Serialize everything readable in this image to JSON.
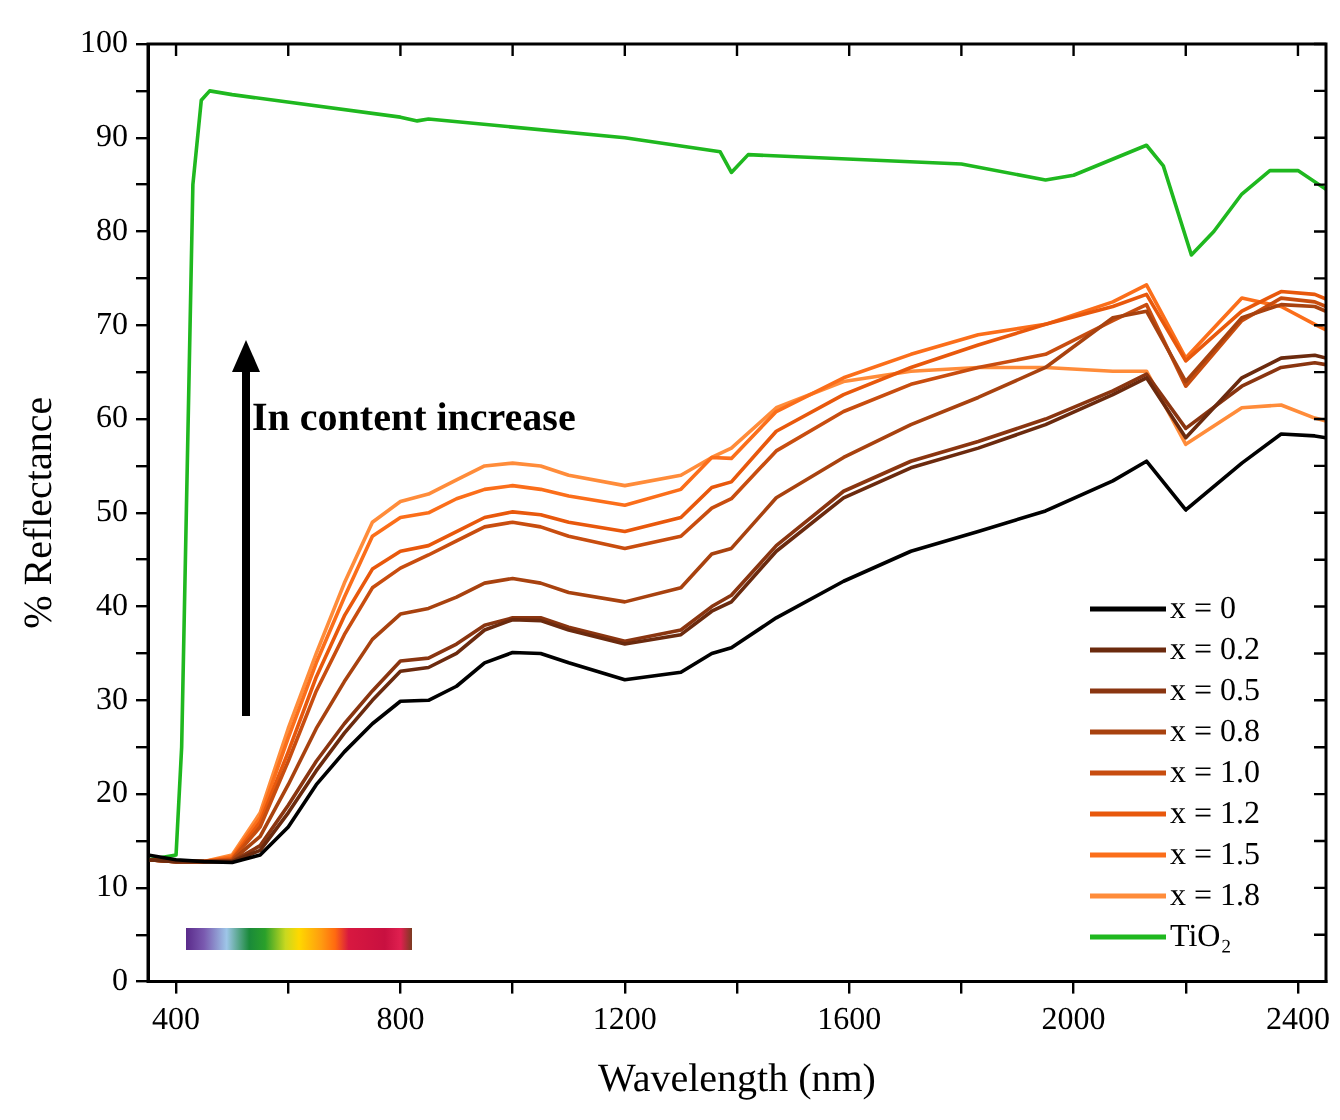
{
  "chart_data": {
    "type": "line",
    "xlabel": "Wavelength (nm)",
    "ylabel": "% Reflectance",
    "x": [
      350,
      400,
      450,
      500,
      550,
      600,
      650,
      700,
      750,
      800,
      850,
      900,
      950,
      1000,
      1050,
      1100,
      1200,
      1300,
      1355,
      1390,
      1470,
      1590,
      1710,
      1830,
      1950,
      2070,
      2130,
      2200,
      2300,
      2370,
      2430,
      2450
    ],
    "series": [
      {
        "name": "x = 0",
        "color": "#000000",
        "values": [
          13.5,
          13,
          12.8,
          12.7,
          13.5,
          16.5,
          21,
          24.5,
          27.5,
          29.9,
          30,
          31.5,
          34,
          35.1,
          35,
          34,
          32.2,
          33,
          35,
          35.6,
          38.8,
          42.7,
          45.9,
          48,
          50.2,
          53.4,
          55.5,
          50.3,
          55.3,
          58.4,
          58.2,
          58
        ]
      },
      {
        "name": "x = 0.2",
        "color": "#6b2a0e",
        "values": [
          13,
          12.8,
          12.8,
          12.8,
          14,
          18,
          22.5,
          26.5,
          30,
          33.1,
          33.5,
          35,
          37.5,
          38.6,
          38.5,
          37.5,
          36,
          37,
          39.5,
          40.5,
          45.9,
          51.6,
          54.8,
          56.9,
          59.4,
          62.6,
          64.4,
          58,
          64.4,
          66.5,
          66.8,
          66.5
        ]
      },
      {
        "name": "x = 0.5",
        "color": "#8a3510",
        "values": [
          13,
          12.8,
          12.8,
          12.8,
          14.5,
          18.8,
          23.5,
          27.5,
          31,
          34.2,
          34.5,
          36,
          38,
          38.8,
          38.8,
          37.8,
          36.3,
          37.5,
          40,
          41.2,
          46.5,
          52.3,
          55.5,
          57.6,
          60,
          63,
          64.8,
          59,
          63.5,
          65.5,
          66,
          65.8
        ]
      },
      {
        "name": "x = 0.8",
        "color": "#a8420f",
        "values": [
          13,
          12.8,
          12.8,
          12.9,
          15.5,
          21,
          27,
          32,
          36.5,
          39.2,
          39.8,
          41,
          42.5,
          43,
          42.5,
          41.5,
          40.5,
          42,
          45.6,
          46.2,
          51.6,
          55.9,
          59.4,
          62.3,
          65.5,
          70.8,
          71.5,
          64,
          70.8,
          72.2,
          72,
          71.5
        ]
      },
      {
        "name": "x = 1.0",
        "color": "#c84d0f",
        "values": [
          13,
          12.8,
          12.8,
          13,
          16.5,
          23.5,
          31,
          37,
          42,
          44.1,
          45.5,
          47,
          48.5,
          49,
          48.5,
          47.5,
          46.2,
          47.5,
          50.5,
          51.5,
          56.6,
          60.8,
          63.7,
          65.5,
          66.9,
          70.5,
          72.2,
          63.5,
          70.5,
          72.9,
          72.5,
          72
        ]
      },
      {
        "name": "x = 1.2",
        "color": "#e8580c",
        "values": [
          13,
          12.8,
          12.8,
          13.1,
          17,
          24.5,
          32.5,
          39,
          44,
          45.9,
          46.5,
          48,
          49.5,
          50.1,
          49.8,
          49,
          48,
          49.5,
          52.7,
          53.3,
          58.7,
          62.6,
          65.5,
          67.9,
          70.1,
          72,
          73.3,
          66.2,
          71.5,
          73.6,
          73.3,
          72.8
        ]
      },
      {
        "name": "x = 1.5",
        "color": "#fb6e1a",
        "values": [
          null,
          12.8,
          12.8,
          13.3,
          17.5,
          26,
          34,
          41,
          47.5,
          49.5,
          50,
          51.5,
          52.5,
          52.9,
          52.5,
          51.8,
          50.8,
          52.5,
          55.9,
          55.8,
          60.8,
          64.4,
          66.9,
          69,
          70.1,
          72.5,
          74.3,
          66.5,
          72.9,
          72,
          70.1,
          69.5
        ]
      },
      {
        "name": "x = 1.8",
        "color": "#ff8c3a",
        "values": [
          null,
          12.8,
          12.8,
          13.5,
          18,
          27,
          35,
          42.5,
          49,
          51.2,
          52,
          53.5,
          55,
          55.3,
          55,
          54,
          52.9,
          54,
          55.9,
          56.9,
          61.2,
          64,
          65.1,
          65.5,
          65.5,
          65.1,
          65.1,
          57.3,
          61.2,
          61.5,
          60.1,
          59.8
        ]
      },
      {
        "name": "TiO₂",
        "color": "#1fb81f",
        "x": [
          350,
          400,
          410,
          420,
          430,
          445,
          460,
          500,
          800,
          830,
          850,
          1200,
          1370,
          1390,
          1420,
          1800,
          1950,
          2000,
          2130,
          2160,
          2210,
          2250,
          2300,
          2350,
          2400,
          2450
        ],
        "values": [
          13,
          13.5,
          25,
          55,
          85,
          94,
          95,
          94.6,
          92.2,
          91.8,
          92,
          90,
          88.5,
          86.3,
          88.2,
          87.2,
          85.5,
          86,
          89.2,
          87,
          77.5,
          80,
          84,
          86.5,
          86.5,
          84.5
        ]
      }
    ],
    "xlim": [
      350,
      2450
    ],
    "xticks": [
      400,
      {
        "value": 600,
        "label": null
      },
      800,
      {
        "value": 1000,
        "label": null
      },
      1200,
      {
        "value": 1400,
        "label": null
      },
      1600,
      {
        "value": 1800,
        "label": null
      },
      2000,
      {
        "value": 2200,
        "label": null
      },
      2400
    ],
    "ylim": [
      0,
      100
    ],
    "yticks": [
      0,
      {
        "value": 5,
        "label": null
      },
      10,
      {
        "value": 15,
        "label": null
      },
      20,
      {
        "value": 25,
        "label": null
      },
      30,
      {
        "value": 35,
        "label": null
      },
      40,
      {
        "value": 45,
        "label": null
      },
      50,
      {
        "value": 55,
        "label": null
      },
      60,
      {
        "value": 65,
        "label": null
      },
      70,
      {
        "value": 75,
        "label": null
      },
      80,
      {
        "value": 85,
        "label": null
      },
      90,
      {
        "value": 95,
        "label": null
      },
      100
    ],
    "annotations": [
      "In content increase"
    ],
    "legend": "bottom right",
    "grid": false,
    "marker": "none",
    "line_style": "solid"
  }
}
